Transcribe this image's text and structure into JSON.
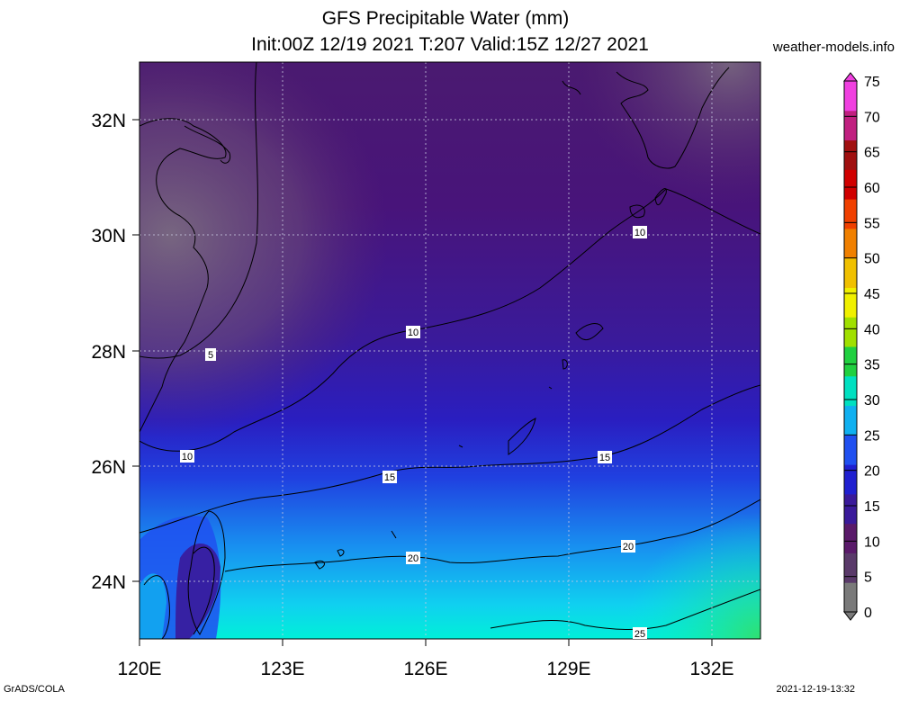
{
  "title_line1": "GFS Precipitable Water (mm)",
  "title_line2": "Init:00Z 12/19 2021 T:207 Valid:15Z 12/27 2021",
  "site": "weather-models.info",
  "footer_left": "GrADS/COLA",
  "footer_right": "2021-12-19-13:32",
  "x_ticks": [
    "120E",
    "123E",
    "126E",
    "129E",
    "132E"
  ],
  "y_ticks": [
    "32N",
    "30N",
    "28N",
    "26N",
    "24N"
  ],
  "contour_labels": [
    "5",
    "10",
    "10",
    "10",
    "15",
    "15",
    "20",
    "20",
    "25"
  ],
  "colorbar": {
    "labels": [
      "0",
      "5",
      "10",
      "15",
      "20",
      "25",
      "30",
      "35",
      "40",
      "45",
      "50",
      "55",
      "60",
      "65",
      "70",
      "75"
    ],
    "colors": [
      "#7a7a7a",
      "#5a3a6a",
      "#5a1a6a",
      "#3a1a9a",
      "#2020d0",
      "#2050f0",
      "#10b0f0",
      "#00e0c0",
      "#20d040",
      "#a0e000",
      "#f0f000",
      "#f0c000",
      "#f08000",
      "#f04000",
      "#d00000",
      "#a01010",
      "#c02080",
      "#f040e0"
    ]
  }
}
